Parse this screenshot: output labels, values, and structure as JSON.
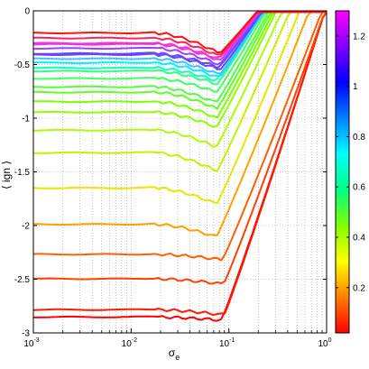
{
  "chart_data": {
    "type": "line",
    "xscale": "log",
    "xlim": [
      0.001,
      1
    ],
    "ylim": [
      -3,
      0
    ],
    "xlabel": "σ",
    "xlabel_sub": "e",
    "ylabel": "⟨ ign ⟩",
    "grid": "dotted",
    "x_ticks": [
      {
        "base": "10",
        "exp": "-3",
        "value": 0.001
      },
      {
        "base": "10",
        "exp": "-2",
        "value": 0.01
      },
      {
        "base": "10",
        "exp": "-1",
        "value": 0.1
      },
      {
        "base": "10",
        "exp": "0",
        "value": 1
      }
    ],
    "y_ticks": [
      {
        "label": "0",
        "value": 0
      },
      {
        "label": "-0.5",
        "value": -0.5
      },
      {
        "label": "-1",
        "value": -1
      },
      {
        "label": "-1.5",
        "value": -1.5
      },
      {
        "label": "-2",
        "value": -2
      },
      {
        "label": "-2.5",
        "value": -2.5
      },
      {
        "label": "-3",
        "value": -3
      }
    ],
    "colorbar": {
      "min": 0.02,
      "max": 1.3,
      "colormap": [
        "#ff0000",
        "#ff8000",
        "#ffff00",
        "#80ff00",
        "#00ff80",
        "#00ffff",
        "#0080ff",
        "#0000ff",
        "#8000ff",
        "#ff00ff"
      ],
      "ticks": [
        {
          "label": "0.2",
          "value": 0.2
        },
        {
          "label": "0.4",
          "value": 0.4
        },
        {
          "label": "0.6",
          "value": 0.6
        },
        {
          "label": "0.8",
          "value": 0.8
        },
        {
          "label": "1",
          "value": 1.0
        },
        {
          "label": "1.2",
          "value": 1.2
        }
      ]
    },
    "series": [
      {
        "color": "#ff0000",
        "plateau": -2.84,
        "dip": -2.87,
        "x_rise": 0.085
      },
      {
        "color": "#ff1a00",
        "plateau": -2.78,
        "dip": -2.83,
        "x_rise": 0.09
      },
      {
        "color": "#ff4000",
        "plateau": -2.5,
        "dip": -2.55,
        "x_rise": 0.088
      },
      {
        "color": "#ff6000",
        "plateau": -2.28,
        "dip": -2.33,
        "x_rise": 0.085
      },
      {
        "color": "#ffa000",
        "plateau": -1.98,
        "dip": -2.1,
        "x_rise": 0.075
      },
      {
        "color": "#e6e600",
        "plateau": -1.65,
        "dip": -1.8,
        "x_rise": 0.075
      },
      {
        "color": "#c8f000",
        "plateau": -1.33,
        "dip": -1.5,
        "x_rise": 0.075
      },
      {
        "color": "#a8ff00",
        "plateau": -1.1,
        "dip": -1.26,
        "x_rise": 0.075
      },
      {
        "color": "#90ff00",
        "plateau": -0.94,
        "dip": -1.08,
        "x_rise": 0.075
      },
      {
        "color": "#7cff00",
        "plateau": -0.85,
        "dip": -1.0,
        "x_rise": 0.075
      },
      {
        "color": "#60ff20",
        "plateau": -0.77,
        "dip": -0.92,
        "x_rise": 0.075
      },
      {
        "color": "#50ff40",
        "plateau": -0.7,
        "dip": -0.85,
        "x_rise": 0.075
      },
      {
        "color": "#40ff60",
        "plateau": -0.63,
        "dip": -0.76,
        "x_rise": 0.075
      },
      {
        "color": "#30ff80",
        "plateau": -0.57,
        "dip": -0.69,
        "x_rise": 0.075
      },
      {
        "color": "#10ffc0",
        "plateau": -0.52,
        "dip": -0.64,
        "x_rise": 0.075
      },
      {
        "color": "#00f0ff",
        "plateau": -0.48,
        "dip": -0.62,
        "x_rise": 0.08
      },
      {
        "color": "#40c0ff",
        "plateau": -0.45,
        "dip": -0.6,
        "x_rise": 0.08
      },
      {
        "color": "#5050ff",
        "plateau": -0.42,
        "dip": -0.56,
        "x_rise": 0.08
      },
      {
        "color": "#7040ff",
        "plateau": -0.39,
        "dip": -0.52,
        "x_rise": 0.08
      },
      {
        "color": "#a040ff",
        "plateau": -0.35,
        "dip": -0.5,
        "x_rise": 0.08
      },
      {
        "color": "#d040ff",
        "plateau": -0.32,
        "dip": -0.47,
        "x_rise": 0.08
      },
      {
        "color": "#ff30c0",
        "plateau": -0.29,
        "dip": -0.44,
        "x_rise": 0.08
      },
      {
        "color": "#ff2060",
        "plateau": -0.25,
        "dip": -0.42,
        "x_rise": 0.08
      },
      {
        "color": "#ff1010",
        "plateau": -0.21,
        "dip": -0.4,
        "x_rise": 0.08
      }
    ]
  }
}
